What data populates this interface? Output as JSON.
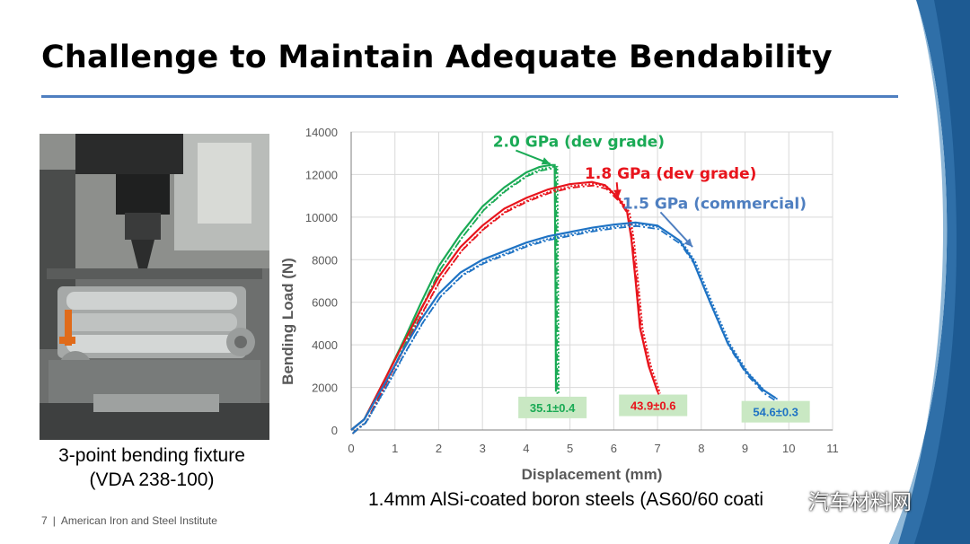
{
  "slide": {
    "title": "Challenge to Maintain Adequate Bendability",
    "photo_caption_line1": "3-point bending fixture",
    "photo_caption_line2": "(VDA 238-100)",
    "chart_caption": "1.4mm AlSi-coated boron steels (AS60/60 coati",
    "footer_page": "7",
    "footer_sep": "|",
    "footer_org": "American Iron and Steel Institute",
    "watermark": "汽车材料网",
    "accent_color": "#4f7fc0"
  },
  "chart_data": {
    "type": "line",
    "xlabel": "Displacement (mm)",
    "ylabel": "Bending Load (N)",
    "xlim": [
      0,
      11
    ],
    "ylim": [
      0,
      14000
    ],
    "x_ticks": [
      "0",
      "1",
      "2",
      "3",
      "4",
      "5",
      "6",
      "7",
      "8",
      "9",
      "10",
      "11"
    ],
    "y_ticks": [
      "0",
      "2000",
      "4000",
      "6000",
      "8000",
      "10000",
      "12000",
      "14000"
    ],
    "grid": true,
    "series": [
      {
        "name": "2.0 GPa (dev grade)",
        "color": "#1aaa55",
        "x": [
          0,
          0.3,
          0.8,
          1.2,
          1.6,
          2.0,
          2.5,
          3.0,
          3.5,
          4.0,
          4.3,
          4.55,
          4.65,
          4.67,
          4.68
        ],
        "y": [
          0,
          500,
          2500,
          4200,
          6000,
          7700,
          9200,
          10500,
          11400,
          12100,
          12350,
          12450,
          12450,
          6000,
          1800
        ]
      },
      {
        "name": "1.8 GPa (dev grade)",
        "color": "#e8141c",
        "x": [
          0,
          0.3,
          0.8,
          1.2,
          1.6,
          2.0,
          2.5,
          3.0,
          3.5,
          4.0,
          4.5,
          5.0,
          5.5,
          5.8,
          6.1,
          6.3,
          6.4,
          6.5,
          6.6,
          6.8,
          7.0
        ],
        "y": [
          0,
          500,
          2500,
          4100,
          5700,
          7200,
          8600,
          9600,
          10400,
          10900,
          11300,
          11550,
          11650,
          11500,
          10900,
          10300,
          9000,
          7000,
          4800,
          3000,
          1800
        ]
      },
      {
        "name": "1.5 GPa (commercial)",
        "color": "#1f73c4",
        "x": [
          0,
          0.3,
          0.8,
          1.2,
          1.6,
          2.0,
          2.5,
          3.0,
          3.5,
          4.0,
          4.5,
          5.0,
          5.5,
          6.0,
          6.5,
          7.0,
          7.5,
          7.8,
          8.2,
          8.6,
          9.0,
          9.4,
          9.7
        ],
        "y": [
          0,
          500,
          2300,
          3800,
          5200,
          6400,
          7400,
          8000,
          8400,
          8800,
          9100,
          9300,
          9500,
          9650,
          9750,
          9600,
          8900,
          8000,
          6000,
          4100,
          2800,
          1900,
          1500
        ]
      }
    ],
    "annotations": [
      {
        "text": "2.0 GPa (dev grade)",
        "color": "#1aaa55",
        "x": 5.2,
        "y": 13300,
        "arrow_to": [
          4.55,
          12500
        ]
      },
      {
        "text": "1.8 GPa (dev grade)",
        "color": "#e8141c",
        "x": 7.3,
        "y": 11800,
        "arrow_to": [
          6.1,
          10900
        ]
      },
      {
        "text": "1.5 GPa (commercial)",
        "color": "#4f7fc0",
        "x": 8.3,
        "y": 10400,
        "arrow_to": [
          7.8,
          8600
        ]
      }
    ],
    "value_boxes": [
      {
        "text": "35.1±0.4",
        "text_color": "#1aaa55",
        "x": 4.6,
        "y": 1100
      },
      {
        "text": "43.9±0.6",
        "text_color": "#e8141c",
        "x": 6.9,
        "y": 1200
      },
      {
        "text": "54.6±0.3",
        "text_color": "#1f73c4",
        "x": 9.7,
        "y": 900
      }
    ]
  }
}
